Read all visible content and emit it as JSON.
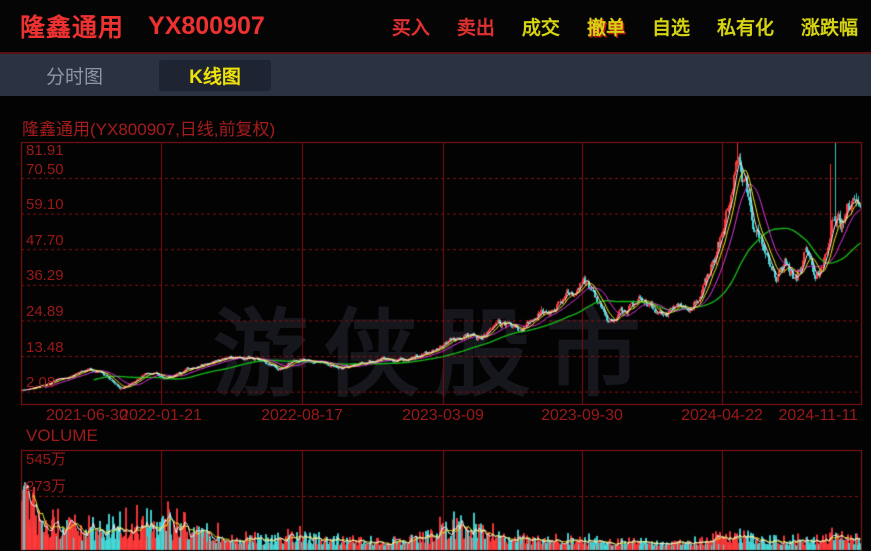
{
  "header": {
    "stock_name": "隆鑫通用",
    "stock_code": "YX800907",
    "menu": [
      {
        "label": "买入",
        "style": "red"
      },
      {
        "label": "卖出",
        "style": "red"
      },
      {
        "label": "成交",
        "style": "yellow"
      },
      {
        "label": "撤单",
        "style": "yellow-red"
      },
      {
        "label": "自选",
        "style": "yellow"
      },
      {
        "label": "私有化",
        "style": "yellow"
      },
      {
        "label": "涨跌幅",
        "style": "yellow"
      }
    ]
  },
  "tabs": [
    {
      "label": "分时图",
      "active": false
    },
    {
      "label": "K线图",
      "active": true
    }
  ],
  "chart": {
    "title": "隆鑫通用(YX800907,日线,前复权)",
    "watermark": "游侠股市",
    "volume_label": "VOLUME"
  },
  "chart_data": {
    "type": "candlestick+volume",
    "title": "隆鑫通用(YX800907,日线,前复权)",
    "y_ticks": [
      "81.91",
      "70.50",
      "59.10",
      "47.70",
      "36.29",
      "24.89",
      "13.48",
      "2.08"
    ],
    "x_ticks": [
      "2021-06-30",
      "2022-01-21",
      "2022-08-17",
      "2023-03-09",
      "2023-09-30",
      "2024-04-22",
      "2024-11-11"
    ],
    "volume_ticks": [
      "545万",
      "273万"
    ],
    "price_range": [
      2.08,
      81.91
    ],
    "volume_axis_max_wan": 545,
    "price_path": [
      [
        0.0,
        2.6
      ],
      [
        0.012,
        3.2
      ],
      [
        0.04,
        5.5
      ],
      [
        0.06,
        7.0
      ],
      [
        0.08,
        9.2
      ],
      [
        0.095,
        8.3
      ],
      [
        0.108,
        5.5
      ],
      [
        0.118,
        3.0
      ],
      [
        0.128,
        4.2
      ],
      [
        0.148,
        7.8
      ],
      [
        0.16,
        8.3
      ],
      [
        0.169,
        6.3
      ],
      [
        0.18,
        7.2
      ],
      [
        0.2,
        9.5
      ],
      [
        0.225,
        11.5
      ],
      [
        0.248,
        12.8
      ],
      [
        0.27,
        13.2
      ],
      [
        0.285,
        12.0
      ],
      [
        0.298,
        10.2
      ],
      [
        0.307,
        9.0
      ],
      [
        0.322,
        11.8
      ],
      [
        0.335,
        13.2
      ],
      [
        0.355,
        11.8
      ],
      [
        0.38,
        9.6
      ],
      [
        0.405,
        11.5
      ],
      [
        0.43,
        12.6
      ],
      [
        0.455,
        11.8
      ],
      [
        0.48,
        13.9
      ],
      [
        0.502,
        17.0
      ],
      [
        0.525,
        20.0
      ],
      [
        0.545,
        19.2
      ],
      [
        0.57,
        24.0
      ],
      [
        0.592,
        22.4
      ],
      [
        0.615,
        26.0
      ],
      [
        0.64,
        29.5
      ],
      [
        0.662,
        35.0
      ],
      [
        0.67,
        37.5
      ],
      [
        0.69,
        28.5
      ],
      [
        0.702,
        24.5
      ],
      [
        0.725,
        28.5
      ],
      [
        0.74,
        30.5
      ],
      [
        0.76,
        27.5
      ],
      [
        0.785,
        28.5
      ],
      [
        0.805,
        32.0
      ],
      [
        0.82,
        40.0
      ],
      [
        0.835,
        52.0
      ],
      [
        0.845,
        65.0
      ],
      [
        0.853,
        76.0
      ],
      [
        0.86,
        72.0
      ],
      [
        0.868,
        62.0
      ],
      [
        0.88,
        50.0
      ],
      [
        0.893,
        40.0
      ],
      [
        0.9,
        36.5
      ],
      [
        0.912,
        43.5
      ],
      [
        0.922,
        38.5
      ],
      [
        0.934,
        47.0
      ],
      [
        0.943,
        42.0
      ],
      [
        0.952,
        39.5
      ],
      [
        0.962,
        50.0
      ],
      [
        0.97,
        60.0
      ],
      [
        0.976,
        55.0
      ],
      [
        0.985,
        68.0
      ],
      [
        0.991,
        62.5
      ],
      [
        1.0,
        67.0
      ]
    ],
    "volume_path": [
      [
        0.0,
        280
      ],
      [
        0.005,
        320
      ],
      [
        0.012,
        210
      ],
      [
        0.02,
        140
      ],
      [
        0.04,
        100
      ],
      [
        0.07,
        85
      ],
      [
        0.095,
        100
      ],
      [
        0.12,
        75
      ],
      [
        0.15,
        95
      ],
      [
        0.17,
        105
      ],
      [
        0.2,
        80
      ],
      [
        0.23,
        60
      ],
      [
        0.26,
        50
      ],
      [
        0.29,
        35
      ],
      [
        0.32,
        55
      ],
      [
        0.34,
        50
      ],
      [
        0.37,
        38
      ],
      [
        0.4,
        32
      ],
      [
        0.43,
        30
      ],
      [
        0.46,
        38
      ],
      [
        0.49,
        55
      ],
      [
        0.515,
        95
      ],
      [
        0.535,
        85
      ],
      [
        0.56,
        65
      ],
      [
        0.59,
        45
      ],
      [
        0.62,
        35
      ],
      [
        0.65,
        40
      ],
      [
        0.68,
        32
      ],
      [
        0.71,
        26
      ],
      [
        0.74,
        28
      ],
      [
        0.77,
        26
      ],
      [
        0.8,
        30
      ],
      [
        0.83,
        38
      ],
      [
        0.855,
        52
      ],
      [
        0.875,
        42
      ],
      [
        0.9,
        32
      ],
      [
        0.925,
        28
      ],
      [
        0.95,
        34
      ],
      [
        0.97,
        44
      ],
      [
        1.0,
        36
      ]
    ],
    "wick_events": [
      {
        "f": 0.853,
        "high": 82.3,
        "dir": "up"
      },
      {
        "f": 0.963,
        "high": 75.0,
        "dir": "up"
      },
      {
        "f": 0.97,
        "high": 82.0,
        "dir": "down"
      }
    ],
    "ma_lines": [
      {
        "period": 60,
        "color": "#17b517"
      },
      {
        "period": 20,
        "color": "#e23ae2"
      },
      {
        "period": 10,
        "color": "#eded1a"
      },
      {
        "period": 5,
        "color": "#efefef"
      }
    ],
    "volume_ma_lines": [
      {
        "period": 10,
        "color": "#eded1a"
      },
      {
        "period": 5,
        "color": "#efefef"
      }
    ],
    "colors": {
      "up": "#ff3a3a",
      "down": "#46d8d8",
      "grid": "#7c0f0f",
      "border": "#8f1414",
      "dashed": "#8a1212",
      "label": "#9c1919"
    },
    "seed": 42,
    "num_candles": 690
  }
}
